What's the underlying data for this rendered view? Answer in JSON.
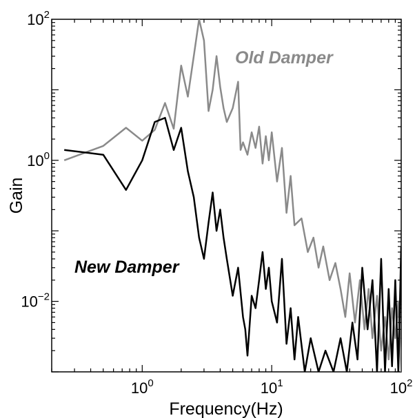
{
  "chart_data": {
    "type": "line",
    "title": "",
    "xlabel": "Frequency(Hz)",
    "ylabel": "Gain",
    "xscale": "log",
    "yscale": "log",
    "xlim": [
      0.2,
      100
    ],
    "ylim": [
      0.001,
      100
    ],
    "x_ticks": [
      {
        "value": 1,
        "base": "10",
        "exp": "0"
      },
      {
        "value": 10,
        "base": "10",
        "exp": "1"
      },
      {
        "value": 100,
        "base": "10",
        "exp": "2"
      }
    ],
    "y_ticks": [
      {
        "value": 0.01,
        "base": "10",
        "exp": "−2"
      },
      {
        "value": 1,
        "base": "10",
        "exp": "0"
      },
      {
        "value": 100,
        "base": "10",
        "exp": "2"
      }
    ],
    "grid": false,
    "series": [
      {
        "name": "Old Damper",
        "color": "#8a8a8a",
        "x": [
          0.25,
          0.5,
          0.75,
          1.0,
          1.25,
          1.5,
          1.75,
          2.0,
          2.25,
          2.5,
          2.75,
          3.0,
          3.25,
          3.5,
          3.75,
          4.0,
          4.25,
          4.5,
          5.0,
          5.5,
          5.75,
          6.0,
          6.5,
          7.0,
          7.5,
          8.0,
          8.5,
          9.0,
          9.5,
          10,
          11,
          12,
          13,
          14,
          15,
          17,
          19,
          21,
          23,
          25,
          28,
          31,
          34,
          37,
          40,
          44,
          48,
          52,
          56,
          60,
          65,
          70,
          75,
          80,
          85,
          90,
          95,
          100
        ],
        "values": [
          1.0,
          1.6,
          2.9,
          1.9,
          2.7,
          6.5,
          2.8,
          22,
          8,
          30,
          100,
          50,
          5,
          10,
          30,
          11,
          5.5,
          3.5,
          5.5,
          13,
          1.4,
          1.8,
          1.2,
          2.5,
          1.5,
          3.0,
          0.9,
          2.2,
          1.0,
          2.5,
          0.5,
          1.5,
          0.18,
          0.6,
          0.12,
          0.15,
          0.05,
          0.08,
          0.03,
          0.06,
          0.02,
          0.035,
          0.015,
          0.006,
          0.025,
          0.005,
          0.02,
          0.004,
          0.015,
          0.003,
          0.012,
          0.002,
          0.006,
          0.0015,
          0.008,
          0.003,
          0.01,
          0.001
        ]
      },
      {
        "name": "New Damper",
        "color": "#000000",
        "x": [
          0.25,
          0.5,
          0.75,
          1.0,
          1.25,
          1.5,
          1.75,
          2.0,
          2.25,
          2.5,
          2.75,
          3.0,
          3.25,
          3.5,
          3.75,
          4.0,
          4.25,
          4.5,
          5.0,
          5.5,
          6.0,
          6.25,
          6.5,
          7.0,
          7.5,
          8.0,
          8.5,
          9.0,
          9.5,
          10,
          11,
          12,
          13,
          14,
          15,
          16,
          18,
          20,
          23,
          26,
          30,
          34,
          38,
          42,
          46,
          50,
          55,
          60,
          65,
          70,
          75,
          80,
          85,
          90,
          95,
          100
        ],
        "values": [
          1.4,
          1.2,
          0.38,
          1.0,
          3.5,
          4.0,
          1.4,
          2.9,
          0.7,
          0.3,
          0.08,
          0.04,
          0.13,
          0.35,
          0.1,
          0.2,
          0.08,
          0.04,
          0.012,
          0.03,
          0.006,
          0.004,
          0.0017,
          0.012,
          0.008,
          0.02,
          0.05,
          0.015,
          0.03,
          0.01,
          0.005,
          0.04,
          0.0025,
          0.008,
          0.0015,
          0.006,
          0.001,
          0.003,
          0.001,
          0.002,
          0.0008,
          0.003,
          0.001,
          0.005,
          0.0015,
          0.03,
          0.004,
          0.02,
          0.001,
          0.04,
          0.0008,
          0.015,
          0.0012,
          0.02,
          0.001,
          0.06
        ]
      }
    ]
  }
}
